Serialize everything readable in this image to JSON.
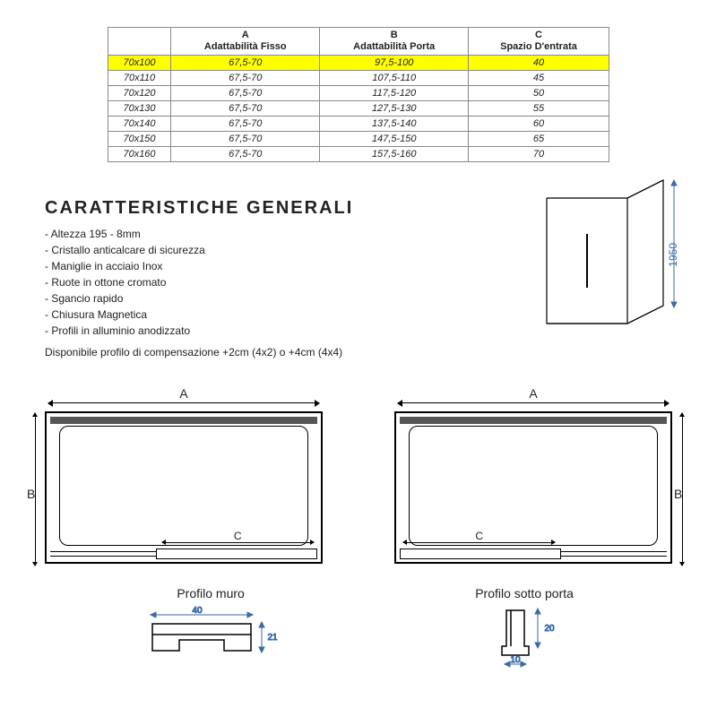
{
  "table": {
    "headers": {
      "size": "",
      "a": "A",
      "a_sub": "Adattabilità Fisso",
      "b": "B",
      "b_sub": "Adattabilità Porta",
      "c": "C",
      "c_sub": "Spazio D'entrata"
    },
    "rows": [
      {
        "size": "70x100",
        "a": "67,5-70",
        "b": "97,5-100",
        "c": "40",
        "highlight": true
      },
      {
        "size": "70x110",
        "a": "67,5-70",
        "b": "107,5-110",
        "c": "45"
      },
      {
        "size": "70x120",
        "a": "67,5-70",
        "b": "117,5-120",
        "c": "50"
      },
      {
        "size": "70x130",
        "a": "67,5-70",
        "b": "127,5-130",
        "c": "55"
      },
      {
        "size": "70x140",
        "a": "67,5-70",
        "b": "137,5-140",
        "c": "60"
      },
      {
        "size": "70x150",
        "a": "67,5-70",
        "b": "147,5-150",
        "c": "65"
      },
      {
        "size": "70x160",
        "a": "67,5-70",
        "b": "157,5-160",
        "c": "70"
      }
    ]
  },
  "section_title": "CARATTERISTICHE GENERALI",
  "features": [
    "Altezza 195 - 8mm",
    "Cristallo anticalcare di sicurezza",
    "Maniglie in acciaio Inox",
    "Ruote in ottone cromato",
    "Sgancio rapido",
    "Chiusura Magnetica",
    "Profili in alluminio anodizzato"
  ],
  "note": "Disponibile profilo di compensazione +2cm (4x2) o +4cm (4x4)",
  "iso_height": "1950",
  "dims": {
    "A": "A",
    "B": "B",
    "C": "C"
  },
  "profile_wall": {
    "title": "Profilo muro",
    "w": "40",
    "h": "21"
  },
  "profile_door": {
    "title": "Profilo sotto porta",
    "w": "10",
    "h": "20"
  },
  "colors": {
    "highlight": "#ffff00",
    "line": "#000000",
    "dim": "#3a6aa8"
  }
}
